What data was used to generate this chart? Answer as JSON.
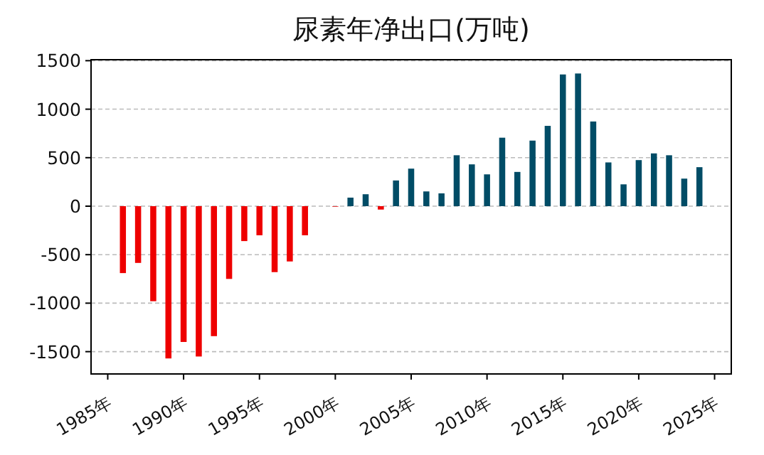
{
  "chart_data": {
    "type": "bar",
    "title": "尿素年净出口(万吨)",
    "x": [
      1986,
      1987,
      1988,
      1989,
      1990,
      1991,
      1992,
      1993,
      1994,
      1995,
      1996,
      1997,
      1998,
      2000,
      2001,
      2002,
      2003,
      2004,
      2005,
      2006,
      2007,
      2008,
      2009,
      2010,
      2011,
      2012,
      2013,
      2014,
      2015,
      2016,
      2017,
      2018,
      2019,
      2020,
      2021,
      2022,
      2023,
      2024
    ],
    "values": [
      -690,
      -585,
      -980,
      -1570,
      -1400,
      -1550,
      -1340,
      -750,
      -360,
      -300,
      -680,
      -570,
      -300,
      -5,
      88,
      123,
      -35,
      265,
      387,
      152,
      132,
      525,
      431,
      328,
      706,
      353,
      676,
      828,
      1358,
      1368,
      873,
      451,
      225,
      475,
      544,
      525,
      284,
      402
    ],
    "colors": [
      "#ee0000",
      "#ee0000",
      "#ee0000",
      "#ee0000",
      "#ee0000",
      "#ee0000",
      "#ee0000",
      "#ee0000",
      "#ee0000",
      "#ee0000",
      "#ee0000",
      "#ee0000",
      "#ee0000",
      "#ee0000",
      "#004c66",
      "#004c66",
      "#ee0000",
      "#004c66",
      "#004c66",
      "#004c66",
      "#004c66",
      "#004c66",
      "#004c66",
      "#004c66",
      "#004c66",
      "#004c66",
      "#004c66",
      "#004c66",
      "#004c66",
      "#004c66",
      "#004c66",
      "#004c66",
      "#004c66",
      "#004c66",
      "#004c66",
      "#004c66",
      "#004c66",
      "#004c66"
    ],
    "xlim": [
      1983.9,
      2026.1
    ],
    "ylim": [
      -1730,
      1510
    ],
    "xticks": [
      {
        "value": 1985,
        "label": "1985年"
      },
      {
        "value": 1990,
        "label": "1990年"
      },
      {
        "value": 1995,
        "label": "1995年"
      },
      {
        "value": 2000,
        "label": "2000年"
      },
      {
        "value": 2005,
        "label": "2005年"
      },
      {
        "value": 2010,
        "label": "2010年"
      },
      {
        "value": 2015,
        "label": "2015年"
      },
      {
        "value": 2020,
        "label": "2020年"
      },
      {
        "value": 2025,
        "label": "2025年"
      }
    ],
    "yticks": [
      -1500,
      -1000,
      -500,
      0,
      500,
      1000,
      1500
    ],
    "grid": "y"
  }
}
